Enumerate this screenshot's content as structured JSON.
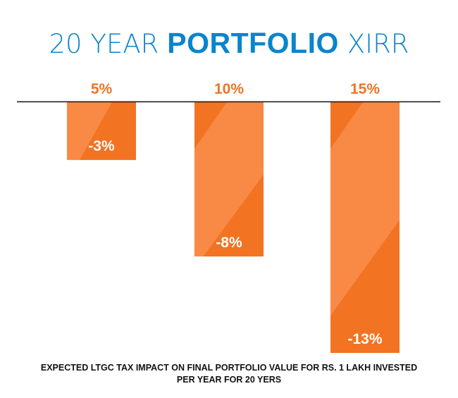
{
  "chart_data": {
    "type": "bar",
    "title": {
      "part1": "20 YEAR",
      "part2": "PORTFOLIO",
      "part3": "XIRR"
    },
    "categories": [
      "5%",
      "10%",
      "15%"
    ],
    "values": [
      -3,
      -8,
      -13
    ],
    "value_labels": [
      "-3%",
      "-8%",
      "-13%"
    ],
    "xlabel": "",
    "ylabel": "",
    "ylim": [
      -13,
      0
    ],
    "grid": false,
    "legend": "none",
    "footnote": {
      "line1": "EXPECTED LTGC TAX IMPACT ON FINAL PORTFOLIO VALUE FOR RS. 1 LAKH INVESTED",
      "line2": "PER YEAR FOR 20 YERS"
    }
  },
  "colors": {
    "title": "#0A84CC",
    "category_label": "#EE7424",
    "bar_light": "#F88A45",
    "bar_dark": "#F27322",
    "value_label": "#FFFFFF",
    "axis": "#111111"
  }
}
